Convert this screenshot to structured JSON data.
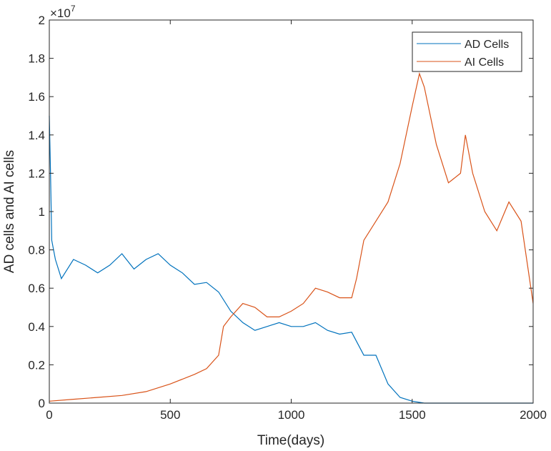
{
  "chart_data": {
    "type": "line",
    "xlabel": "Time(days)",
    "ylabel": "AD cells and AI cells",
    "xlim": [
      0,
      2000
    ],
    "ylim": [
      0,
      2
    ],
    "y_exponent_label": "×10",
    "y_exponent": "7",
    "xticks": [
      "0",
      "500",
      "1000",
      "1500",
      "2000"
    ],
    "yticks": [
      "0",
      "0.2",
      "0.4",
      "0.6",
      "0.8",
      "1",
      "1.2",
      "1.4",
      "1.6",
      "1.8",
      "2"
    ],
    "grid": false,
    "legend_position": "top-right",
    "series": [
      {
        "name": "AD Cells",
        "color": "#0072BD",
        "x": [
          0,
          5,
          10,
          25,
          50,
          100,
          150,
          200,
          250,
          300,
          350,
          400,
          450,
          500,
          550,
          600,
          650,
          700,
          750,
          800,
          850,
          900,
          950,
          1000,
          1050,
          1100,
          1150,
          1200,
          1250,
          1300,
          1350,
          1400,
          1450,
          1500,
          1550,
          2000
        ],
        "y": [
          1.5,
          1.2,
          0.85,
          0.75,
          0.65,
          0.75,
          0.72,
          0.68,
          0.72,
          0.78,
          0.7,
          0.75,
          0.78,
          0.72,
          0.68,
          0.62,
          0.63,
          0.58,
          0.48,
          0.42,
          0.38,
          0.4,
          0.42,
          0.4,
          0.4,
          0.42,
          0.38,
          0.36,
          0.37,
          0.25,
          0.25,
          0.1,
          0.03,
          0.01,
          0,
          0
        ]
      },
      {
        "name": "AI Cells",
        "color": "#D95319",
        "x": [
          0,
          100,
          200,
          300,
          400,
          500,
          600,
          650,
          700,
          720,
          750,
          800,
          850,
          900,
          950,
          1000,
          1050,
          1100,
          1150,
          1200,
          1250,
          1270,
          1300,
          1350,
          1400,
          1450,
          1500,
          1530,
          1550,
          1600,
          1650,
          1700,
          1720,
          1750,
          1800,
          1850,
          1900,
          1950,
          2000
        ],
        "y": [
          0.01,
          0.02,
          0.03,
          0.04,
          0.06,
          0.1,
          0.15,
          0.18,
          0.25,
          0.4,
          0.45,
          0.52,
          0.5,
          0.45,
          0.45,
          0.48,
          0.52,
          0.6,
          0.58,
          0.55,
          0.55,
          0.65,
          0.85,
          0.95,
          1.05,
          1.25,
          1.55,
          1.72,
          1.65,
          1.35,
          1.15,
          1.2,
          1.4,
          1.2,
          1.0,
          0.9,
          1.05,
          0.95,
          0.52
        ]
      }
    ]
  }
}
